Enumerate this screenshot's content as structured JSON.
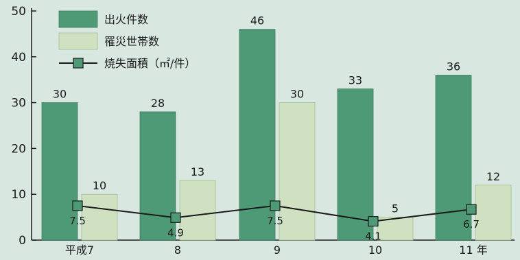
{
  "chart_data": {
    "type": "bar",
    "categories": [
      "平成7",
      "8",
      "9",
      "10",
      "11 年"
    ],
    "series": [
      {
        "name": "出火件数",
        "type": "bar",
        "values": [
          30,
          28,
          46,
          33,
          36
        ]
      },
      {
        "name": "罹災世帯数",
        "type": "bar",
        "values": [
          10,
          13,
          30,
          5,
          12
        ]
      },
      {
        "name": "焼失面積（㎡/件）",
        "type": "line",
        "values": [
          7.5,
          4.9,
          7.5,
          4.1,
          6.7
        ]
      }
    ],
    "ylim": [
      0,
      50
    ],
    "yticks": [
      0,
      10,
      20,
      30,
      40,
      50
    ],
    "legend_position": "top-left",
    "grid": false
  },
  "colors": {
    "background": "#d8e7e0",
    "bar_dark": "#4f9a76",
    "bar_light": "#cfe1c1",
    "line": "#1a1a1a",
    "marker": "#4f9a76",
    "axis": "#1a1a1a"
  }
}
